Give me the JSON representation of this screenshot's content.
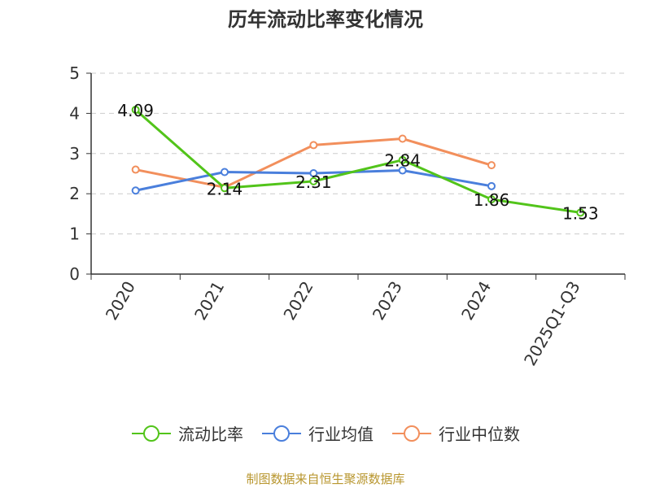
{
  "title": "历年流动比率变化情况",
  "source": "制图数据来自恒生聚源数据库",
  "chart_data": {
    "type": "line",
    "title": "历年流动比率变化情况",
    "categories": [
      "2020",
      "2021",
      "2022",
      "2023",
      "2024",
      "2025Q1-Q3"
    ],
    "ylim": [
      0,
      5
    ],
    "yticks": [
      0,
      1,
      2,
      3,
      4,
      5
    ],
    "grid": true,
    "legend_position": "bottom",
    "series": [
      {
        "name": "流动比率",
        "color": "#52c41a",
        "values": [
          4.09,
          2.14,
          2.31,
          2.84,
          1.86,
          1.53
        ],
        "labels": [
          "4.09",
          "2.14",
          "2.31",
          "2.84",
          "1.86",
          "1.53"
        ]
      },
      {
        "name": "行业均值",
        "color": "#4a7fdc",
        "values": [
          2.08,
          2.54,
          2.51,
          2.58,
          2.19,
          null
        ]
      },
      {
        "name": "行业中位数",
        "color": "#f28f5c",
        "values": [
          2.6,
          2.16,
          3.21,
          3.37,
          2.71,
          null
        ]
      }
    ]
  }
}
